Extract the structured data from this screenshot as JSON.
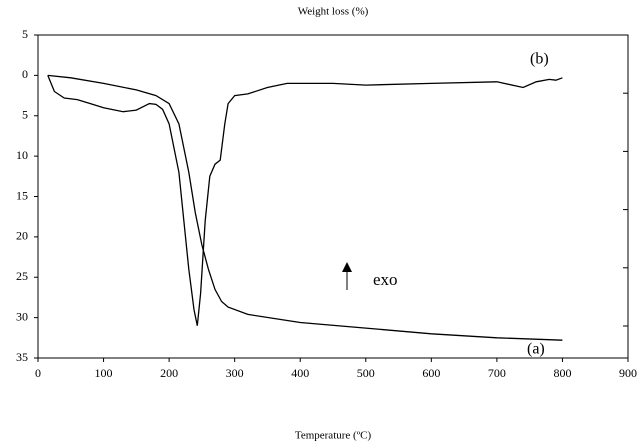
{
  "chart_data": {
    "type": "line",
    "title": "Weight loss (%)",
    "x_label": "Temperature (ºC)",
    "xlim": [
      0,
      900
    ],
    "xticks": [
      0,
      100,
      200,
      300,
      400,
      500,
      600,
      700,
      800,
      900
    ],
    "ylim": [
      -5,
      35
    ],
    "y_inverted": true,
    "yticks": [
      {
        "value": -5,
        "label": "5"
      },
      0,
      5,
      10,
      15,
      20,
      25,
      30,
      35
    ],
    "series": [
      {
        "name": "(a)",
        "color": "#000000",
        "x": [
          15,
          50,
          100,
          150,
          180,
          200,
          215,
          230,
          240,
          250,
          260,
          270,
          280,
          290,
          320,
          400,
          500,
          600,
          700,
          800
        ],
        "values": [
          0,
          0.3,
          1,
          1.8,
          2.5,
          3.5,
          6,
          12,
          17,
          21,
          24,
          26.5,
          28,
          28.7,
          29.6,
          30.6,
          31.3,
          32,
          32.5,
          32.8
        ]
      },
      {
        "name": "(b)",
        "color": "#000000",
        "x": [
          15,
          25,
          40,
          60,
          80,
          100,
          130,
          150,
          170,
          180,
          190,
          200,
          215,
          230,
          238,
          243,
          248,
          255,
          262,
          270,
          278,
          285,
          290,
          300,
          320,
          350,
          380,
          450,
          500,
          600,
          700,
          740,
          760,
          780,
          790,
          800
        ],
        "values": [
          0,
          2,
          2.8,
          3,
          3.5,
          4,
          4.5,
          4.3,
          3.5,
          3.6,
          4.2,
          6,
          12,
          24,
          29,
          31,
          27,
          18,
          12.5,
          11,
          10.5,
          6,
          3.5,
          2.5,
          2.3,
          1.5,
          1,
          1,
          1.2,
          1,
          0.8,
          1.5,
          0.8,
          0.5,
          0.6,
          0.3
        ]
      }
    ],
    "annotation": "exo"
  }
}
